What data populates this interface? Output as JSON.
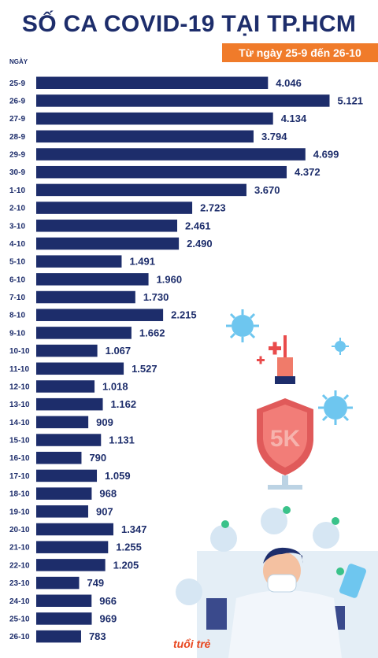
{
  "chart_data": {
    "type": "bar",
    "orientation": "horizontal",
    "title": "SỐ CA COVID-19 TẠI TP.HCM",
    "subtitle": "Từ ngày 25-9 đến 26-10",
    "ylabel": "NGÀY",
    "categories": [
      "25-9",
      "26-9",
      "27-9",
      "28-9",
      "29-9",
      "30-9",
      "1-10",
      "2-10",
      "3-10",
      "4-10",
      "5-10",
      "6-10",
      "7-10",
      "8-10",
      "9-10",
      "10-10",
      "11-10",
      "12-10",
      "13-10",
      "14-10",
      "15-10",
      "16-10",
      "17-10",
      "18-10",
      "19-10",
      "20-10",
      "21-10",
      "22-10",
      "23-10",
      "24-10",
      "25-10",
      "26-10"
    ],
    "values": [
      4046,
      5121,
      4134,
      3794,
      4699,
      4372,
      3670,
      2723,
      2461,
      2490,
      1491,
      1960,
      1730,
      2215,
      1662,
      1067,
      1527,
      1018,
      1162,
      909,
      1131,
      790,
      1059,
      968,
      907,
      1347,
      1255,
      1205,
      749,
      966,
      969,
      783
    ],
    "value_labels": [
      "4.046",
      "5.121",
      "4.134",
      "3.794",
      "4.699",
      "4.372",
      "3.670",
      "2.723",
      "2.461",
      "2.490",
      "1.491",
      "1.960",
      "1.730",
      "2.215",
      "1.662",
      "1.067",
      "1.527",
      "1.018",
      "1.162",
      "909",
      "1.131",
      "790",
      "1.059",
      "968",
      "907",
      "1.347",
      "1.255",
      "1.205",
      "749",
      "966",
      "969",
      "783"
    ],
    "xlim": [
      0,
      5121
    ],
    "grid": false,
    "colors": {
      "bar": "#1d2d6b",
      "title": "#1d2d6b",
      "subtitle_bg": "#f07b2a"
    }
  },
  "brand_text": "tuổi trẻ"
}
